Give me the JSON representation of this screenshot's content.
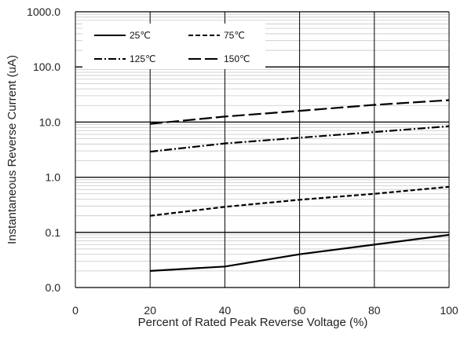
{
  "chart_data": {
    "type": "line",
    "title": "",
    "xlabel": "Percent of  Rated Peak Reverse Voltage (%)",
    "ylabel": "Instantaneous Reverse Current (uA)",
    "x_ticks": [
      0,
      20,
      40,
      60,
      80,
      100
    ],
    "y_ticks": [
      {
        "value": 0.01,
        "label": "0.0"
      },
      {
        "value": 0.1,
        "label": "0.1"
      },
      {
        "value": 1,
        "label": "1.0"
      },
      {
        "value": 10,
        "label": "10.0"
      },
      {
        "value": 100,
        "label": "100.0"
      },
      {
        "value": 1000,
        "label": "1000.0"
      }
    ],
    "xlim": [
      0,
      100
    ],
    "ylim": [
      0.01,
      1000
    ],
    "yscale": "log",
    "grid": true,
    "legend_position": "top-left",
    "series": [
      {
        "name": "25℃",
        "dash": "solid",
        "color": "#000000",
        "x": [
          20,
          40,
          60,
          80,
          100
        ],
        "y": [
          0.02,
          0.024,
          0.04,
          0.06,
          0.09
        ]
      },
      {
        "name": "75℃",
        "dash": "short-dash",
        "color": "#000000",
        "x": [
          20,
          40,
          60,
          80,
          100
        ],
        "y": [
          0.2,
          0.29,
          0.39,
          0.5,
          0.67
        ]
      },
      {
        "name": "125℃",
        "dash": "dash-dot",
        "color": "#000000",
        "x": [
          20,
          40,
          60,
          80,
          100
        ],
        "y": [
          2.9,
          4.1,
          5.2,
          6.6,
          8.4
        ]
      },
      {
        "name": "150℃",
        "dash": "long-dash",
        "color": "#000000",
        "x": [
          20,
          40,
          60,
          80,
          100
        ],
        "y": [
          9.3,
          12.6,
          16,
          20.5,
          25
        ]
      }
    ]
  }
}
